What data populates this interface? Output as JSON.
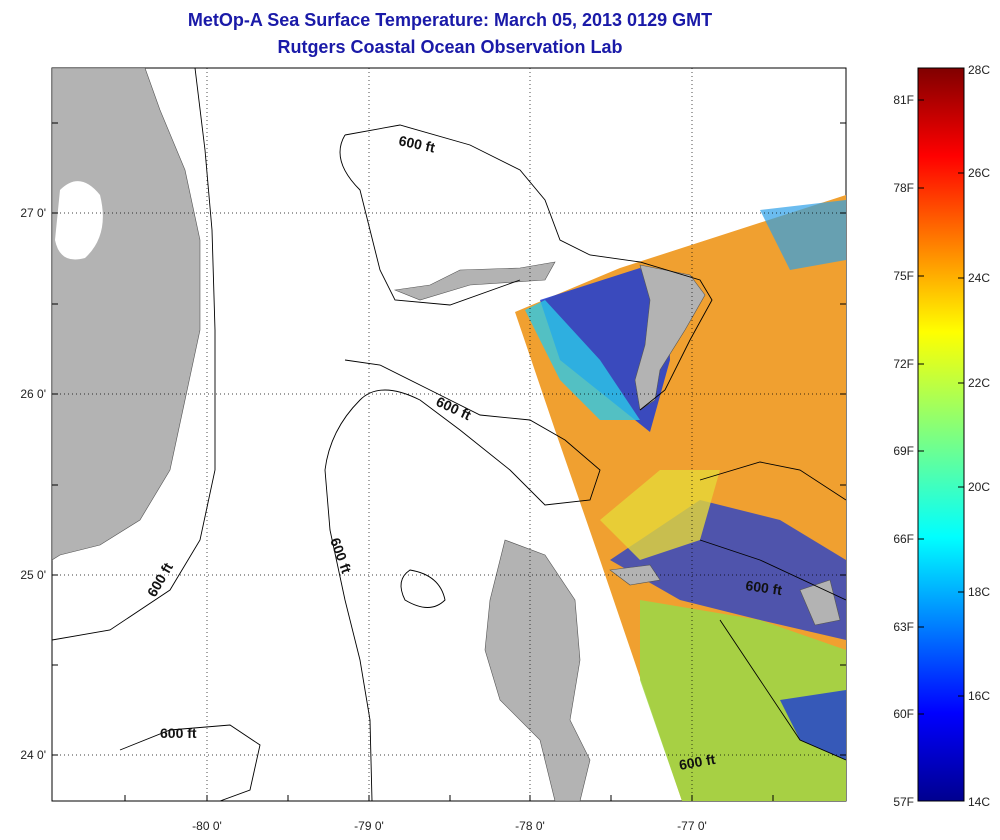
{
  "title": "MetOp-A Sea Surface Temperature:  March 05, 2013 0129 GMT",
  "subtitle": "Rutgers Coastal Ocean Observation Lab",
  "axes": {
    "x_ticks": [
      "-80 0'",
      "-79 0'",
      "-78 0'",
      "-77 0'"
    ],
    "y_ticks": [
      "27 0'",
      "26 0'",
      "25 0'",
      "24 0'"
    ],
    "grid": "dotted"
  },
  "contour_label": "600 ft",
  "colorbar": {
    "fahrenheit_labels": [
      "81F",
      "78F",
      "75F",
      "72F",
      "69F",
      "66F",
      "63F",
      "60F",
      "57F"
    ],
    "celsius_labels": [
      "28C",
      "26C",
      "24C",
      "22C",
      "20C",
      "18C",
      "16C",
      "14C"
    ],
    "range_c": [
      14,
      28
    ],
    "colormap": "jet"
  },
  "colors": {
    "title": "#1a1aa8",
    "land": "#b3b3b3",
    "warm": "#f0a030",
    "cool": "#1a3bd6",
    "mid": "#d8e030"
  }
}
